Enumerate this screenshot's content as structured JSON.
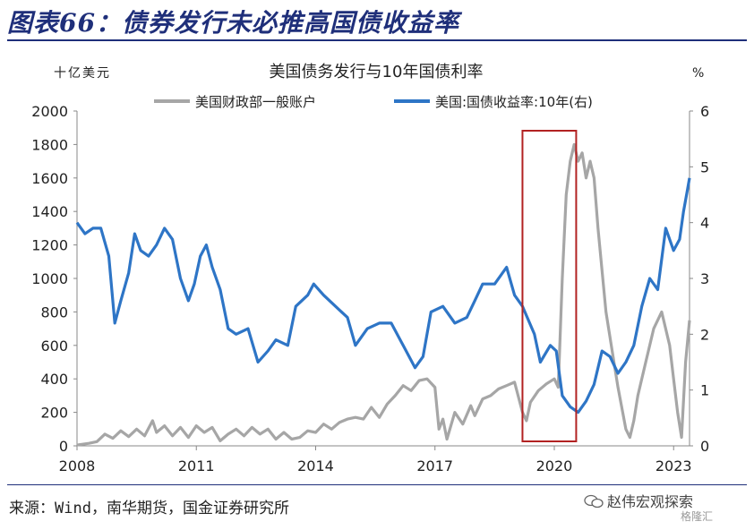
{
  "figure_title": "图表66：债券发行未必推高国债收益率",
  "source_note": "来源：Wind，南华期货，国金证券研究所",
  "watermark": "赵伟宏观探索",
  "watermark_small": "格隆汇",
  "colors": {
    "gray_series": "#a6a6a6",
    "blue_series": "#2e75c6",
    "highlight_box": "#b22222",
    "title": "#1f2f7a"
  },
  "chart_data": {
    "type": "line",
    "title": "美国债务发行与10年国债利率",
    "y_left_unit": "十亿美元",
    "y_right_unit": "%",
    "y_left_range": [
      0,
      2000
    ],
    "y_left_ticks": [
      "0",
      "200",
      "400",
      "600",
      "800",
      "1000",
      "1200",
      "1400",
      "1600",
      "1800",
      "2000"
    ],
    "y_right_range": [
      0,
      6
    ],
    "y_right_ticks": [
      "0",
      "1",
      "2",
      "3",
      "4",
      "5",
      "6"
    ],
    "x_range": [
      2008.0,
      2023.4
    ],
    "x_ticks": [
      "2008",
      "2011",
      "2014",
      "2017",
      "2020",
      "2023"
    ],
    "legend_placement": "top",
    "highlight_range": [
      2019.2,
      2020.55
    ],
    "series": [
      {
        "name": "美国财政部一般账户",
        "axis": "left",
        "points": [
          [
            2008.0,
            5
          ],
          [
            2008.3,
            15
          ],
          [
            2008.5,
            25
          ],
          [
            2008.7,
            70
          ],
          [
            2008.9,
            45
          ],
          [
            2009.1,
            90
          ],
          [
            2009.3,
            55
          ],
          [
            2009.5,
            100
          ],
          [
            2009.7,
            60
          ],
          [
            2009.9,
            150
          ],
          [
            2010.0,
            80
          ],
          [
            2010.2,
            120
          ],
          [
            2010.4,
            60
          ],
          [
            2010.6,
            110
          ],
          [
            2010.8,
            50
          ],
          [
            2011.0,
            120
          ],
          [
            2011.2,
            80
          ],
          [
            2011.4,
            110
          ],
          [
            2011.6,
            30
          ],
          [
            2011.8,
            70
          ],
          [
            2012.0,
            100
          ],
          [
            2012.2,
            60
          ],
          [
            2012.4,
            110
          ],
          [
            2012.6,
            70
          ],
          [
            2012.8,
            100
          ],
          [
            2013.0,
            40
          ],
          [
            2013.2,
            80
          ],
          [
            2013.4,
            40
          ],
          [
            2013.6,
            50
          ],
          [
            2013.8,
            90
          ],
          [
            2014.0,
            80
          ],
          [
            2014.2,
            130
          ],
          [
            2014.4,
            100
          ],
          [
            2014.6,
            140
          ],
          [
            2014.8,
            160
          ],
          [
            2015.0,
            170
          ],
          [
            2015.2,
            160
          ],
          [
            2015.4,
            230
          ],
          [
            2015.6,
            170
          ],
          [
            2015.8,
            250
          ],
          [
            2016.0,
            300
          ],
          [
            2016.2,
            360
          ],
          [
            2016.4,
            330
          ],
          [
            2016.6,
            390
          ],
          [
            2016.8,
            400
          ],
          [
            2017.0,
            350
          ],
          [
            2017.1,
            100
          ],
          [
            2017.2,
            160
          ],
          [
            2017.3,
            40
          ],
          [
            2017.5,
            200
          ],
          [
            2017.7,
            130
          ],
          [
            2017.9,
            240
          ],
          [
            2018.0,
            180
          ],
          [
            2018.2,
            280
          ],
          [
            2018.4,
            300
          ],
          [
            2018.6,
            340
          ],
          [
            2018.8,
            360
          ],
          [
            2019.0,
            380
          ],
          [
            2019.2,
            200
          ],
          [
            2019.3,
            150
          ],
          [
            2019.4,
            260
          ],
          [
            2019.6,
            330
          ],
          [
            2019.8,
            370
          ],
          [
            2020.0,
            400
          ],
          [
            2020.1,
            350
          ],
          [
            2020.2,
            1000
          ],
          [
            2020.3,
            1500
          ],
          [
            2020.4,
            1700
          ],
          [
            2020.5,
            1800
          ],
          [
            2020.6,
            1700
          ],
          [
            2020.7,
            1750
          ],
          [
            2020.8,
            1600
          ],
          [
            2020.9,
            1700
          ],
          [
            2021.0,
            1600
          ],
          [
            2021.1,
            1300
          ],
          [
            2021.3,
            800
          ],
          [
            2021.5,
            500
          ],
          [
            2021.6,
            350
          ],
          [
            2021.8,
            100
          ],
          [
            2021.9,
            50
          ],
          [
            2022.0,
            150
          ],
          [
            2022.1,
            300
          ],
          [
            2022.3,
            500
          ],
          [
            2022.5,
            700
          ],
          [
            2022.7,
            800
          ],
          [
            2022.9,
            600
          ],
          [
            2023.0,
            400
          ],
          [
            2023.1,
            200
          ],
          [
            2023.2,
            50
          ],
          [
            2023.3,
            500
          ],
          [
            2023.4,
            750
          ]
        ]
      },
      {
        "name": "美国:国债收益率:10年(右)",
        "axis": "right",
        "points": [
          [
            2008.0,
            4.0
          ],
          [
            2008.2,
            3.8
          ],
          [
            2008.4,
            3.9
          ],
          [
            2008.6,
            3.9
          ],
          [
            2008.8,
            3.4
          ],
          [
            2008.95,
            2.2
          ],
          [
            2009.1,
            2.6
          ],
          [
            2009.3,
            3.1
          ],
          [
            2009.45,
            3.8
          ],
          [
            2009.6,
            3.5
          ],
          [
            2009.8,
            3.4
          ],
          [
            2010.0,
            3.6
          ],
          [
            2010.2,
            3.9
          ],
          [
            2010.4,
            3.7
          ],
          [
            2010.6,
            3.0
          ],
          [
            2010.8,
            2.6
          ],
          [
            2010.95,
            2.9
          ],
          [
            2011.1,
            3.4
          ],
          [
            2011.25,
            3.6
          ],
          [
            2011.4,
            3.2
          ],
          [
            2011.6,
            2.8
          ],
          [
            2011.8,
            2.1
          ],
          [
            2012.0,
            2.0
          ],
          [
            2012.3,
            2.1
          ],
          [
            2012.55,
            1.5
          ],
          [
            2012.8,
            1.7
          ],
          [
            2013.0,
            1.9
          ],
          [
            2013.3,
            1.8
          ],
          [
            2013.5,
            2.5
          ],
          [
            2013.8,
            2.7
          ],
          [
            2013.95,
            2.9
          ],
          [
            2014.2,
            2.7
          ],
          [
            2014.5,
            2.5
          ],
          [
            2014.8,
            2.3
          ],
          [
            2015.0,
            1.8
          ],
          [
            2015.3,
            2.1
          ],
          [
            2015.6,
            2.2
          ],
          [
            2015.9,
            2.2
          ],
          [
            2016.2,
            1.8
          ],
          [
            2016.5,
            1.4
          ],
          [
            2016.7,
            1.6
          ],
          [
            2016.9,
            2.4
          ],
          [
            2017.2,
            2.5
          ],
          [
            2017.5,
            2.2
          ],
          [
            2017.8,
            2.3
          ],
          [
            2018.0,
            2.6
          ],
          [
            2018.2,
            2.9
          ],
          [
            2018.5,
            2.9
          ],
          [
            2018.8,
            3.2
          ],
          [
            2019.0,
            2.7
          ],
          [
            2019.2,
            2.5
          ],
          [
            2019.5,
            2.0
          ],
          [
            2019.65,
            1.5
          ],
          [
            2019.9,
            1.8
          ],
          [
            2020.05,
            1.7
          ],
          [
            2020.2,
            0.9
          ],
          [
            2020.4,
            0.7
          ],
          [
            2020.6,
            0.6
          ],
          [
            2020.8,
            0.8
          ],
          [
            2021.0,
            1.1
          ],
          [
            2021.2,
            1.7
          ],
          [
            2021.4,
            1.6
          ],
          [
            2021.6,
            1.3
          ],
          [
            2021.8,
            1.5
          ],
          [
            2022.0,
            1.8
          ],
          [
            2022.2,
            2.5
          ],
          [
            2022.4,
            3.0
          ],
          [
            2022.6,
            2.8
          ],
          [
            2022.8,
            3.9
          ],
          [
            2023.0,
            3.5
          ],
          [
            2023.15,
            3.7
          ],
          [
            2023.25,
            4.2
          ],
          [
            2023.35,
            4.6
          ],
          [
            2023.4,
            4.8
          ]
        ]
      }
    ]
  }
}
